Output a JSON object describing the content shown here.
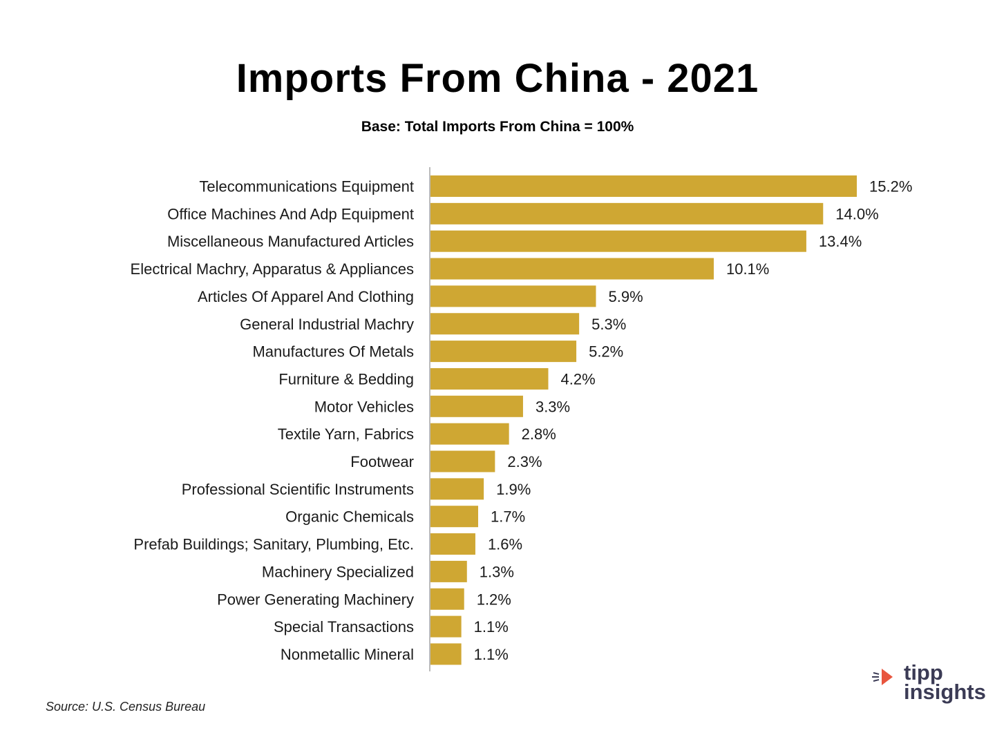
{
  "chart_data": {
    "type": "bar",
    "orientation": "horizontal",
    "title": "Imports From China - 2021",
    "subtitle": "Base:  Total Imports From China = 100%",
    "categories": [
      "Telecommunications Equipment",
      "Office Machines And Adp Equipment",
      "Miscellaneous Manufactured Articles",
      "Electrical Machry, Apparatus & Appliances",
      "Articles Of Apparel And Clothing",
      "General Industrial Machry",
      "Manufactures Of Metals",
      "Furniture & Bedding",
      "Motor Vehicles",
      "Textile Yarn, Fabrics",
      "Footwear",
      "Professional Scientific Instruments",
      "Organic Chemicals",
      "Prefab Buildings; Sanitary, Plumbing, Etc.",
      "Machinery Specialized",
      "Power Generating Machinery",
      "Special Transactions",
      "Nonmetallic Mineral"
    ],
    "values": [
      15.2,
      14.0,
      13.4,
      10.1,
      5.9,
      5.3,
      5.2,
      4.2,
      3.3,
      2.8,
      2.3,
      1.9,
      1.7,
      1.6,
      1.3,
      1.2,
      1.1,
      1.1
    ],
    "data_labels": [
      "15.2%",
      "14.0%",
      "13.4%",
      "10.1%",
      "5.9%",
      "5.3%",
      "5.2%",
      "4.2%",
      "3.3%",
      "2.8%",
      "2.3%",
      "1.9%",
      "1.7%",
      "1.6%",
      "1.3%",
      "1.2%",
      "1.1%",
      "1.1%"
    ],
    "unit": "%",
    "xlim": [
      0,
      16
    ],
    "grid": false,
    "legend": "none",
    "bar_color": "#cfa733"
  },
  "source": "Source: U.S. Census Bureau",
  "logo": {
    "line1": "tipp",
    "line2": "insights",
    "accent_color": "#e8553e",
    "text_color": "#3b3b55"
  }
}
